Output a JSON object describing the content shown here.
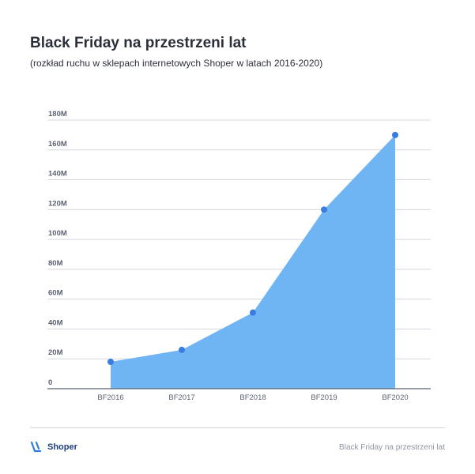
{
  "title": "Black Friday na przestrzeni lat",
  "subtitle": "(rozkład ruchu w sklepach internetowych Shoper w latach 2016-2020)",
  "footer": {
    "brand": "Shoper",
    "caption": "Black Friday na przestrzeni lat"
  },
  "colors": {
    "area": "#6fb5f3",
    "point": "#3a7de0",
    "grid": "#d4d7dd",
    "axis": "#5b6270",
    "tick_text": "#5b6270",
    "brand": "#1d3f7a"
  },
  "chart_data": {
    "type": "area",
    "categories": [
      "BF2016",
      "BF2017",
      "BF2018",
      "BF2019",
      "BF2020"
    ],
    "series": [
      {
        "values": [
          18,
          26,
          51,
          120,
          170
        ]
      }
    ],
    "ylim": [
      0,
      180
    ],
    "yticks": [
      0,
      20,
      40,
      60,
      80,
      100,
      120,
      140,
      160,
      180
    ],
    "ytick_labels": [
      "0",
      "20M",
      "40M",
      "60M",
      "80M",
      "100M",
      "120M",
      "140M",
      "160M",
      "180M"
    ],
    "grid": true,
    "legend": "none"
  }
}
